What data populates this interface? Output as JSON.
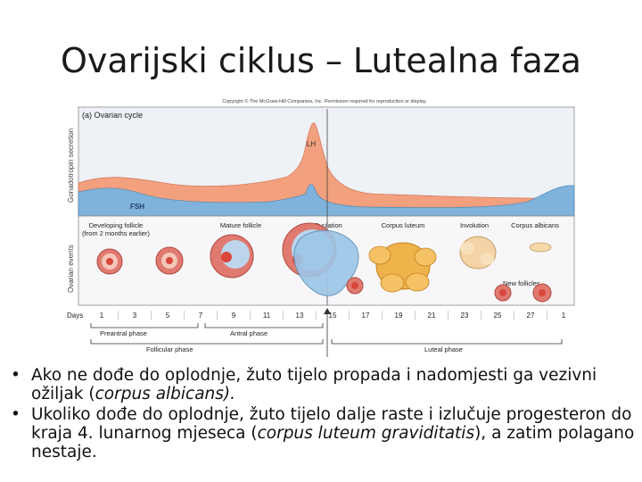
{
  "slide": {
    "title": "Ovarijski ciklus – Lutealna faza"
  },
  "figure": {
    "copyright": "Copyright © The McGraw-Hill Companies, Inc. Permission required for reproduction or display.",
    "panel_title": "(a) Ovarian cycle",
    "y_label_top": "Gonadotropin secretion",
    "y_label_bottom": "Ovarian events",
    "hormones": {
      "lh": "LH",
      "fsh": "FSH"
    },
    "events": {
      "developing": "Developing follicle",
      "developing_sub": "(from 2 months earlier)",
      "mature": "Mature follicle",
      "ovulation": "Ovulation",
      "corpus_luteum": "Corpus luteum",
      "involution": "Involution",
      "corpus_albicans": "Corpus albicans",
      "new_follicles": "New follicles"
    },
    "days_label": "Days",
    "days": [
      "1",
      "3",
      "5",
      "7",
      "9",
      "11",
      "13",
      "15",
      "17",
      "19",
      "21",
      "23",
      "25",
      "27",
      "1"
    ],
    "phases": {
      "preantral": "Preantral phase",
      "antral": "Antral phase",
      "follicular": "Follicular phase",
      "luteal": "Luteal phase"
    },
    "colors": {
      "lh": "#f2a07e",
      "fsh": "#7fb3dc",
      "follicle": "#e07a70",
      "corpus_luteum": "#f0b24a"
    }
  },
  "bullets": [
    {
      "before": "Ako ne dođe do oplodnje, žuto tijelo propada i nadomjesti ga vezivni ožiljak (",
      "italic": "corpus albicans).",
      "after": ""
    },
    {
      "before": "Ukoliko dođe do oplodnje, žuto tijelo dalje raste i izlučuje progesteron do kraja 4. lunarnog mjeseca (",
      "italic": "corpus luteum graviditatis",
      "after": "), a zatim polagano nestaje."
    }
  ]
}
